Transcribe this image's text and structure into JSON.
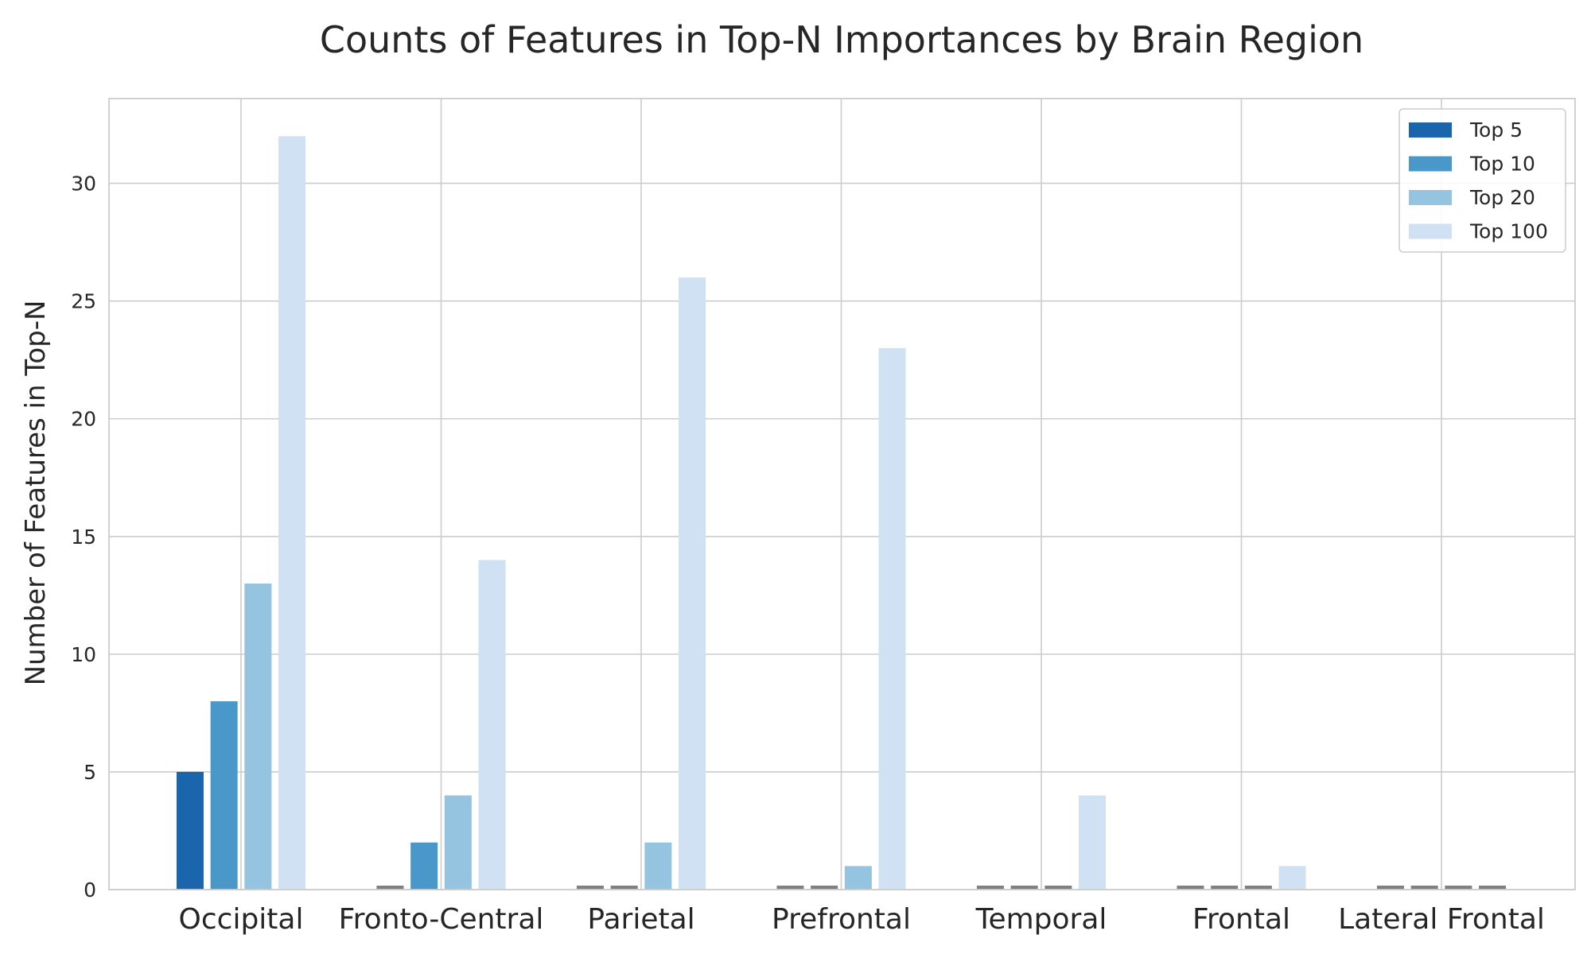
{
  "chart_data": {
    "type": "bar",
    "title": "Counts of Features in Top-N Importances by Brain Region",
    "xlabel": "",
    "ylabel": "Number of Features in Top-N",
    "categories": [
      "Occipital",
      "Fronto-Central",
      "Parietal",
      "Prefrontal",
      "Temporal",
      "Frontal",
      "Lateral Frontal"
    ],
    "series": [
      {
        "name": "Top 5",
        "color": "#1a65ab",
        "values": [
          5,
          0,
          0,
          0,
          0,
          0,
          0
        ]
      },
      {
        "name": "Top 10",
        "color": "#4a98c9",
        "values": [
          8,
          2,
          0,
          0,
          0,
          0,
          0
        ]
      },
      {
        "name": "Top 20",
        "color": "#94c4df",
        "values": [
          13,
          4,
          2,
          1,
          0,
          0,
          0
        ]
      },
      {
        "name": "Top 100",
        "color": "#cfe1f2",
        "values": [
          32,
          14,
          26,
          23,
          4,
          1,
          0
        ]
      }
    ],
    "zero_marker_color": "#808080",
    "ylim": [
      0,
      33.6
    ],
    "yticks": [
      0,
      5,
      10,
      15,
      20,
      25,
      30
    ],
    "grid": true,
    "legend_position": "top-right"
  }
}
